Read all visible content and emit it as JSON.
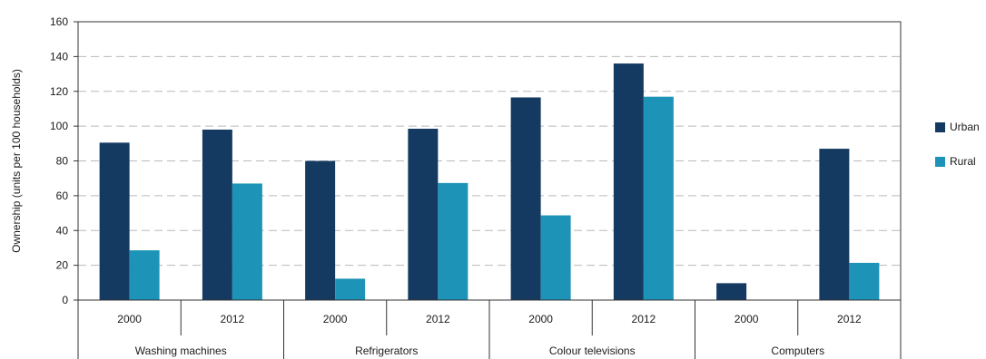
{
  "chart_data": {
    "type": "bar",
    "title": "",
    "ylabel": "Ownership (units per 100 households)",
    "ylim": [
      0,
      160
    ],
    "yticks": [
      "0",
      "20",
      "40",
      "60",
      "80",
      "100",
      "120",
      "140",
      "160"
    ],
    "groups": [
      {
        "label": "Washing machines",
        "years": [
          "2000",
          "2012"
        ]
      },
      {
        "label": "Refrigerators",
        "years": [
          "2000",
          "2012"
        ]
      },
      {
        "label": "Colour televisions",
        "years": [
          "2000",
          "2012"
        ]
      },
      {
        "label": "Computers",
        "years": [
          "2000",
          "2012"
        ]
      }
    ],
    "series": [
      {
        "name": "Urban",
        "color": "#143a62",
        "values": [
          90.5,
          98,
          80,
          98.5,
          116.5,
          136,
          9.7,
          87
        ]
      },
      {
        "name": "Rural",
        "color": "#1d93b8",
        "values": [
          28.6,
          67,
          12.3,
          67.3,
          48.7,
          116.9,
          0,
          21.4
        ]
      }
    ],
    "grid": true,
    "legend_position": "right"
  }
}
